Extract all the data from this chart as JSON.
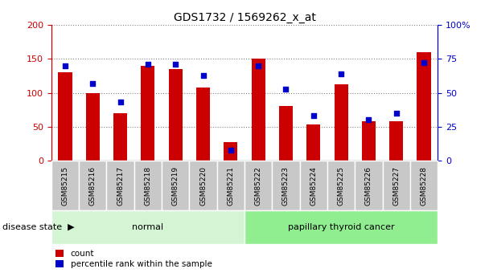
{
  "title": "GDS1732 / 1569262_x_at",
  "samples": [
    "GSM85215",
    "GSM85216",
    "GSM85217",
    "GSM85218",
    "GSM85219",
    "GSM85220",
    "GSM85221",
    "GSM85222",
    "GSM85223",
    "GSM85224",
    "GSM85225",
    "GSM85226",
    "GSM85227",
    "GSM85228"
  ],
  "count_values": [
    130,
    100,
    70,
    140,
    135,
    108,
    27,
    150,
    80,
    53,
    112,
    58,
    58,
    160
  ],
  "percentile_values": [
    70,
    57,
    43,
    71,
    71,
    63,
    8,
    70,
    53,
    33,
    64,
    30,
    35,
    72
  ],
  "group_labels": [
    "normal",
    "papillary thyroid cancer"
  ],
  "group_ranges": [
    [
      0,
      7
    ],
    [
      7,
      14
    ]
  ],
  "group_colors_light": [
    "#d4f5d4",
    "#90ee90"
  ],
  "bar_color": "#cc0000",
  "dot_color": "#0000cc",
  "ylim_left": [
    0,
    200
  ],
  "ylim_right": [
    0,
    100
  ],
  "yticks_left": [
    0,
    50,
    100,
    150,
    200
  ],
  "yticks_right": [
    0,
    25,
    50,
    75,
    100
  ],
  "ytick_labels_left": [
    "0",
    "50",
    "100",
    "150",
    "200"
  ],
  "ytick_labels_right": [
    "0",
    "25",
    "50",
    "75",
    "100%"
  ],
  "legend_count": "count",
  "legend_percentile": "percentile rank within the sample",
  "disease_state_label": "disease state",
  "bg_color": "#ffffff",
  "tick_area_color": "#c8c8c8"
}
